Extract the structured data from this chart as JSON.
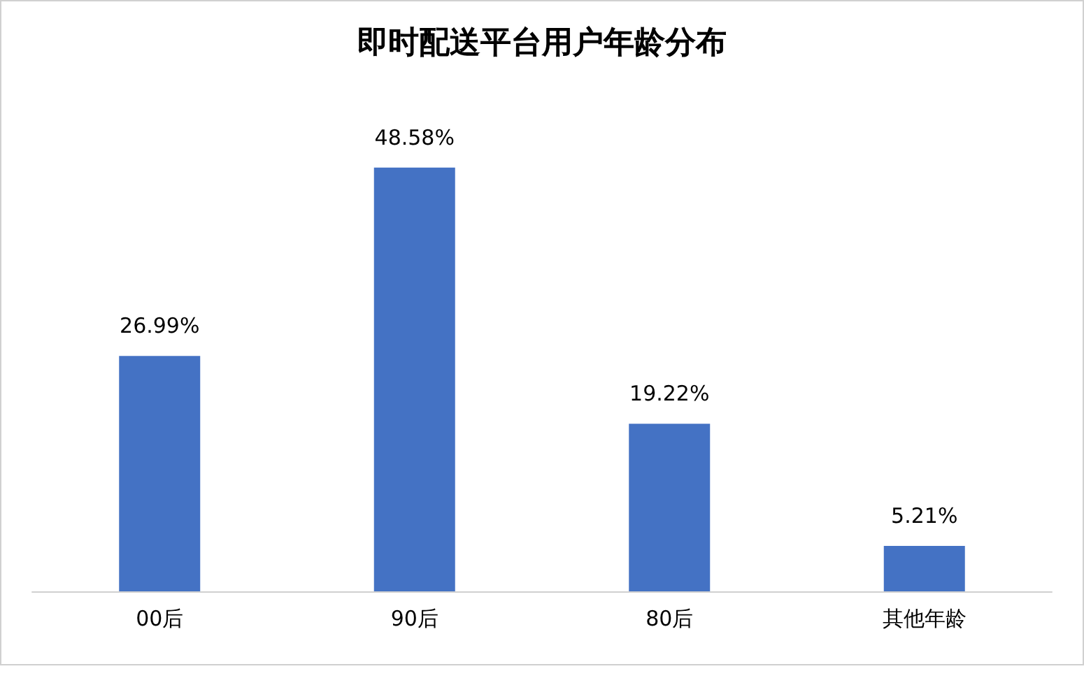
{
  "chart_data": {
    "type": "bar",
    "title": "即时配送平台用户年龄分布",
    "categories": [
      "00后",
      "90后",
      "80后",
      "其他年龄"
    ],
    "values": [
      26.99,
      48.58,
      19.22,
      5.21
    ],
    "value_labels": [
      "26.99%",
      "48.58%",
      "19.22%",
      "5.21%"
    ],
    "color": "#4472c4"
  }
}
